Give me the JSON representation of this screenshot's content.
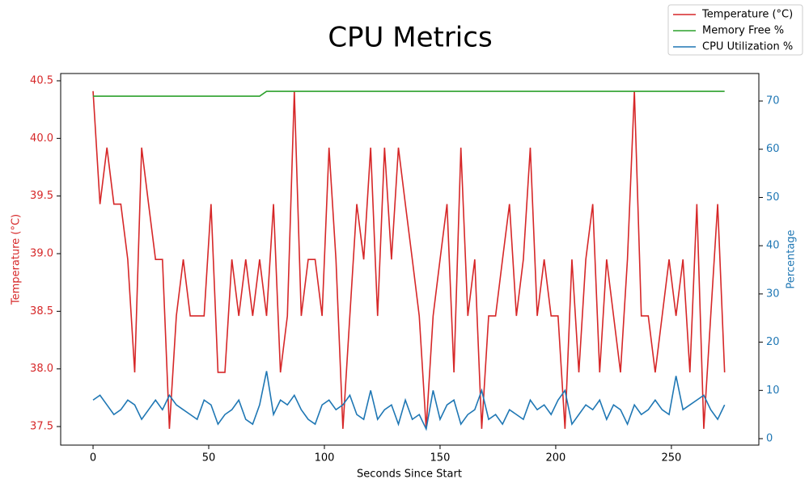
{
  "chart_data": {
    "type": "line",
    "title": "CPU Metrics",
    "x_label": "Seconds Since Start",
    "y_label": "Temperature (°C)",
    "y2_label": "Percentage",
    "y_color": "#d62728",
    "y2_color": "#1f77b4",
    "x": [
      0,
      3,
      6,
      9,
      12,
      15,
      18,
      21,
      24,
      27,
      30,
      33,
      36,
      39,
      42,
      45,
      48,
      51,
      54,
      57,
      60,
      63,
      66,
      69,
      72,
      75,
      78,
      81,
      84,
      87,
      90,
      93,
      96,
      99,
      102,
      105,
      108,
      111,
      114,
      117,
      120,
      123,
      126,
      129,
      132,
      135,
      138,
      141,
      144,
      147,
      150,
      153,
      156,
      159,
      162,
      165,
      168,
      171,
      174,
      177,
      180,
      183,
      186,
      189,
      192,
      195,
      198,
      201,
      204,
      207,
      210,
      213,
      216,
      219,
      222,
      225,
      228,
      231,
      234,
      237,
      240,
      243,
      246,
      249,
      252,
      255,
      258,
      261,
      264,
      267,
      270,
      273
    ],
    "xlim": [
      -14,
      287.8
    ],
    "xticks": [
      0,
      50,
      100,
      150,
      200,
      250
    ],
    "ylim": [
      37.339,
      40.563
    ],
    "yticks": [
      37.5,
      {
        "value": 38,
        "label": "38.0"
      },
      38.5,
      {
        "value": 39,
        "label": "39.0"
      },
      39.5,
      {
        "value": 40,
        "label": "40.0"
      },
      40.5
    ],
    "y2lim": [
      -1.34,
      75.7
    ],
    "y2ticks": [
      0,
      10,
      20,
      30,
      40,
      50,
      60,
      70
    ],
    "legend": "upper right",
    "series": [
      {
        "name": "Temperature (°C)",
        "color": "#d62728",
        "axis": "y",
        "values": [
          40.41,
          39.43,
          39.92,
          39.43,
          39.43,
          38.95,
          37.97,
          39.92,
          39.43,
          38.95,
          38.95,
          37.48,
          38.46,
          38.95,
          38.46,
          38.46,
          38.46,
          39.43,
          37.97,
          37.97,
          38.95,
          38.46,
          38.95,
          38.46,
          38.95,
          38.46,
          39.43,
          37.97,
          38.46,
          40.41,
          38.46,
          38.95,
          38.95,
          38.46,
          39.92,
          38.95,
          37.48,
          38.46,
          39.43,
          38.95,
          39.92,
          38.46,
          39.92,
          38.95,
          39.92,
          39.43,
          38.95,
          38.46,
          37.48,
          38.46,
          38.95,
          39.43,
          37.97,
          39.92,
          38.46,
          38.95,
          37.48,
          38.46,
          38.46,
          38.95,
          39.43,
          38.46,
          38.95,
          39.92,
          38.46,
          38.95,
          38.46,
          38.46,
          37.48,
          38.95,
          37.97,
          38.95,
          39.43,
          37.97,
          38.95,
          38.46,
          37.97,
          38.95,
          40.41,
          38.46,
          38.46,
          37.97,
          38.46,
          38.95,
          38.46,
          38.95,
          37.97,
          39.43,
          37.48,
          38.46,
          39.43,
          37.97
        ]
      },
      {
        "name": "Memory Free %",
        "color": "#2ca02c",
        "axis": "y2",
        "values": [
          71,
          71,
          71,
          71,
          71,
          71,
          71,
          71,
          71,
          71,
          71,
          71,
          71,
          71,
          71,
          71,
          71,
          71,
          71,
          71,
          71,
          71,
          71,
          71,
          71,
          72,
          72,
          72,
          72,
          72,
          72,
          72,
          72,
          72,
          72,
          72,
          72,
          72,
          72,
          72,
          72,
          72,
          72,
          72,
          72,
          72,
          72,
          72,
          72,
          72,
          72,
          72,
          72,
          72,
          72,
          72,
          72,
          72,
          72,
          72,
          72,
          72,
          72,
          72,
          72,
          72,
          72,
          72,
          72,
          72,
          72,
          72,
          72,
          72,
          72,
          72,
          72,
          72,
          72,
          72,
          72,
          72,
          72,
          72,
          72,
          72,
          72,
          72,
          72,
          72,
          72,
          72
        ]
      },
      {
        "name": "CPU Utilization %",
        "color": "#1f77b4",
        "axis": "y2",
        "values": [
          8,
          9,
          7,
          5,
          6,
          8,
          7,
          4,
          6,
          8,
          6,
          9,
          7,
          6,
          5,
          4,
          8,
          7,
          3,
          5,
          6,
          8,
          4,
          3,
          7,
          14,
          5,
          8,
          7,
          9,
          6,
          4,
          3,
          7,
          8,
          6,
          7,
          9,
          5,
          4,
          10,
          4,
          6,
          7,
          3,
          8,
          4,
          5,
          2,
          10,
          4,
          7,
          8,
          3,
          5,
          6,
          10,
          4,
          5,
          3,
          6,
          5,
          4,
          8,
          6,
          7,
          5,
          8,
          10,
          3,
          5,
          7,
          6,
          8,
          4,
          7,
          6,
          3,
          7,
          5,
          6,
          8,
          6,
          5,
          13,
          6,
          7,
          8,
          9,
          6,
          4,
          7
        ]
      }
    ]
  }
}
